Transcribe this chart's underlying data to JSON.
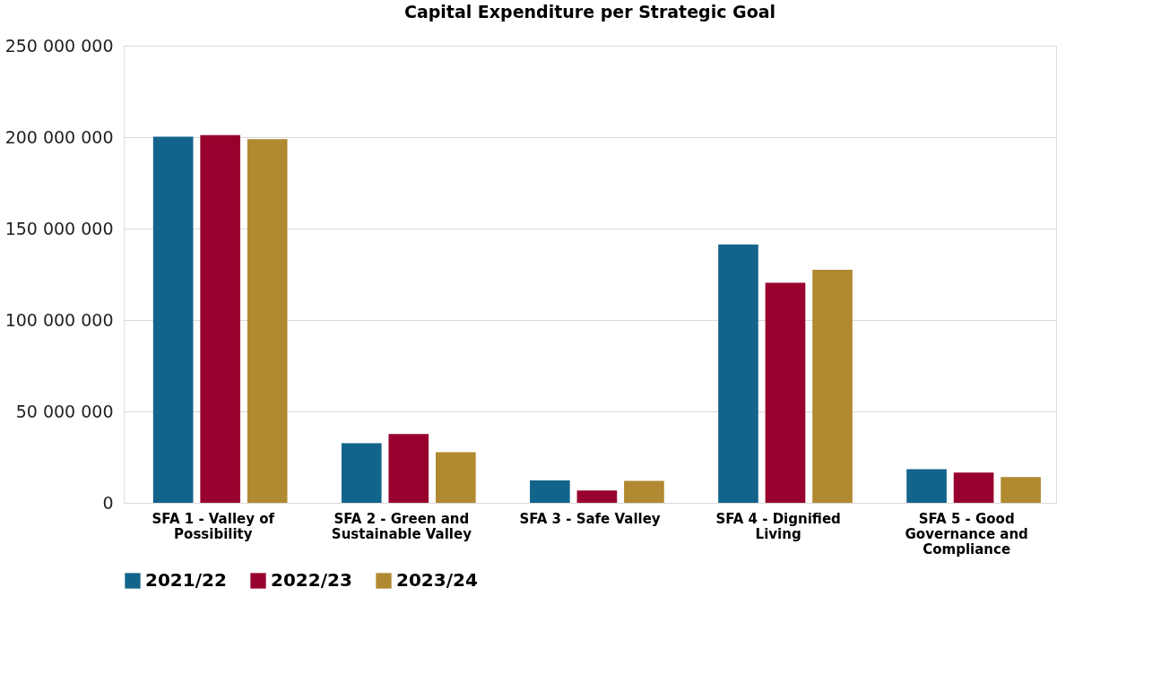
{
  "chart_data": {
    "type": "bar",
    "title": "Capital Expenditure per Strategic Goal",
    "categories": [
      "SFA 1 - Valley of Possibility",
      "SFA 2 - Green and Sustainable Valley",
      "SFA 3 - Safe Valley",
      "SFA 4 - Dignified Living",
      "SFA 5 - Good Governance and Compliance"
    ],
    "series": [
      {
        "name": "2021/22",
        "color": "#13648b",
        "values": [
          200200000,
          32600000,
          12200000,
          141300000,
          18400000
        ]
      },
      {
        "name": "2022/23",
        "color": "#98002e",
        "values": [
          201100000,
          37600000,
          6800000,
          120400000,
          16600000
        ]
      },
      {
        "name": "2023/24",
        "color": "#b08930",
        "values": [
          198900000,
          27700000,
          12000000,
          127400000,
          14100000
        ]
      }
    ],
    "ylim": [
      0,
      250000000
    ],
    "yticks": [
      {
        "value": 0,
        "label": "0"
      },
      {
        "value": 50000000,
        "label": "50 000 000"
      },
      {
        "value": 100000000,
        "label": "100 000 000"
      },
      {
        "value": 150000000,
        "label": "150 000 000"
      },
      {
        "value": 200000000,
        "label": "200 000 000"
      },
      {
        "value": 250000000,
        "label": "250 000 000"
      }
    ],
    "grid": "y",
    "legend": "bottom"
  }
}
